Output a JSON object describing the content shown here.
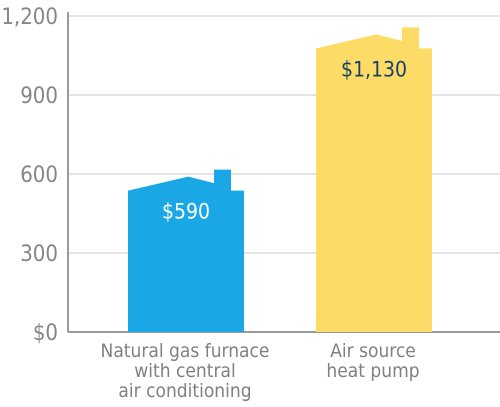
{
  "chart_data": {
    "type": "bar",
    "title": "",
    "xlabel": "",
    "ylabel": "",
    "ylim": [
      0,
      1200
    ],
    "yticks": [
      0,
      300,
      600,
      900,
      1200
    ],
    "ytick_labels": [
      "$0",
      "300",
      "600",
      "900",
      "1,200"
    ],
    "grid": "horizontal",
    "bar_shape": "house",
    "categories": [
      [
        "Natural gas furnace",
        "with central",
        "air conditioning"
      ],
      [
        "Air source",
        "heat pump"
      ]
    ],
    "values": [
      590,
      1130
    ],
    "data_labels": [
      "$590",
      "$1,130"
    ],
    "colors": [
      "#1aa7e6",
      "#fcdc66"
    ],
    "label_colors": [
      "#ffffff",
      "#1a3f66"
    ]
  },
  "colors": {
    "grid": "#dcdcdc",
    "axis": "#9a9a9a"
  }
}
